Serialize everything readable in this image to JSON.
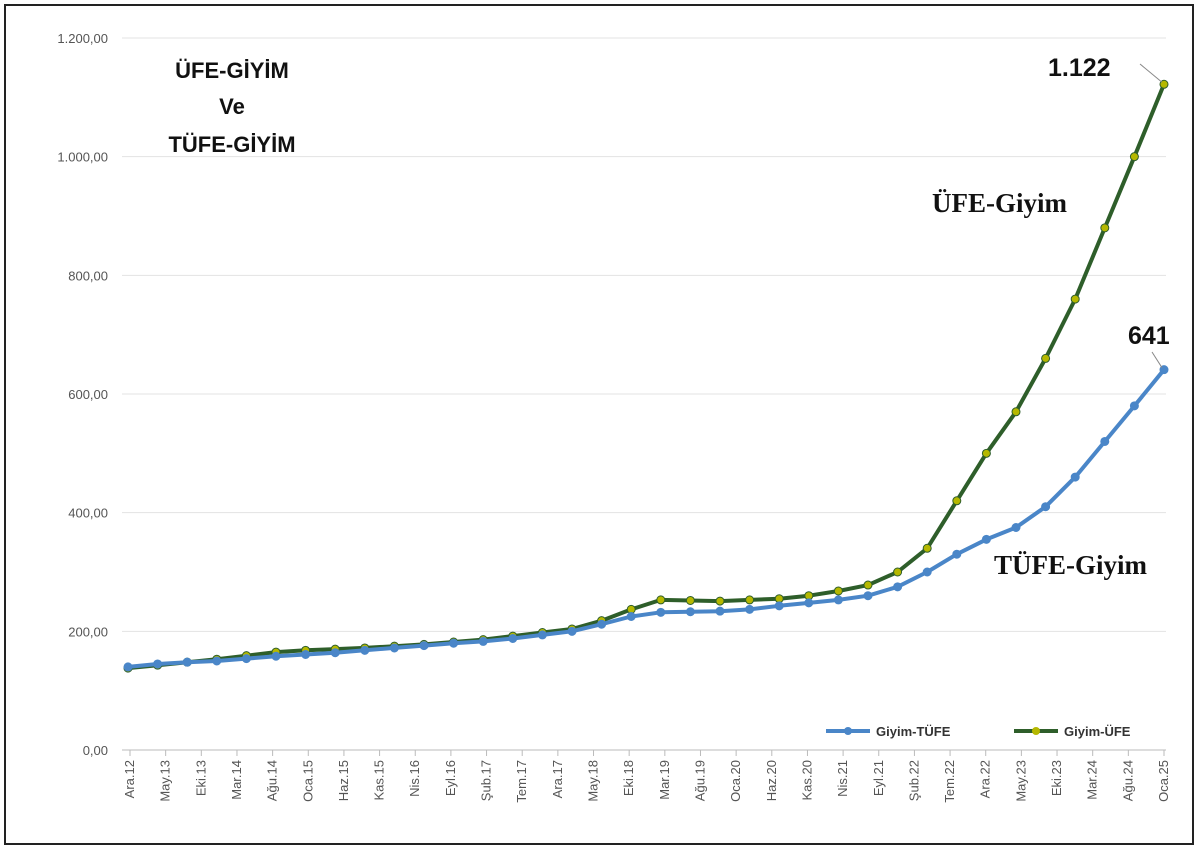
{
  "chart_data": {
    "type": "line",
    "title_lines": [
      "ÜFE-GİYİM",
      "Ve",
      "TÜFE-GİYİM"
    ],
    "ylim": [
      0,
      1200
    ],
    "y_ticks": [
      "0,00",
      "200,00",
      "400,00",
      "600,00",
      "800,00",
      "1.000,00",
      "1.200,00"
    ],
    "y_tick_values": [
      0,
      200,
      400,
      600,
      800,
      1000,
      1200
    ],
    "grid": true,
    "legend_position": "bottom-right",
    "x_ticks": [
      "Ara.12",
      "May.13",
      "Eki.13",
      "Mar.14",
      "Ağu.14",
      "Oca.15",
      "Haz.15",
      "Kas.15",
      "Nis.16",
      "Eyl.16",
      "Şub.17",
      "Tem.17",
      "Ara.17",
      "May.18",
      "Eki.18",
      "Mar.19",
      "Ağu.19",
      "Oca.20",
      "Haz.20",
      "Kas.20",
      "Nis.21",
      "Eyl.21",
      "Şub.22",
      "Tem.22",
      "Ara.22",
      "May.23",
      "Eki.23",
      "Mar.24",
      "Ağu.24",
      "Oca.25"
    ],
    "series": [
      {
        "name": "Giyim-TÜFE",
        "color": "#4a86c8",
        "marker": "#4a86c8",
        "values": [
          140,
          145,
          148,
          150,
          154,
          158,
          161,
          164,
          168,
          172,
          176,
          180,
          183,
          188,
          194,
          200,
          212,
          225,
          232,
          233,
          234,
          237,
          243,
          248,
          253,
          260,
          275,
          300,
          330,
          355,
          375,
          410,
          460,
          520,
          580,
          641
        ],
        "end_label": "641",
        "annotation": "TÜFE-Giyim"
      },
      {
        "name": "Giyim-ÜFE",
        "color": "#2e5e2a",
        "marker": "#b5b800",
        "values": [
          138,
          143,
          148,
          153,
          159,
          165,
          168,
          170,
          172,
          175,
          178,
          182,
          186,
          192,
          198,
          204,
          218,
          237,
          253,
          252,
          251,
          253,
          255,
          260,
          268,
          278,
          300,
          340,
          420,
          500,
          570,
          660,
          760,
          880,
          1000,
          1122
        ],
        "end_label": "1.122",
        "annotation": "ÜFE-Giyim"
      }
    ]
  }
}
